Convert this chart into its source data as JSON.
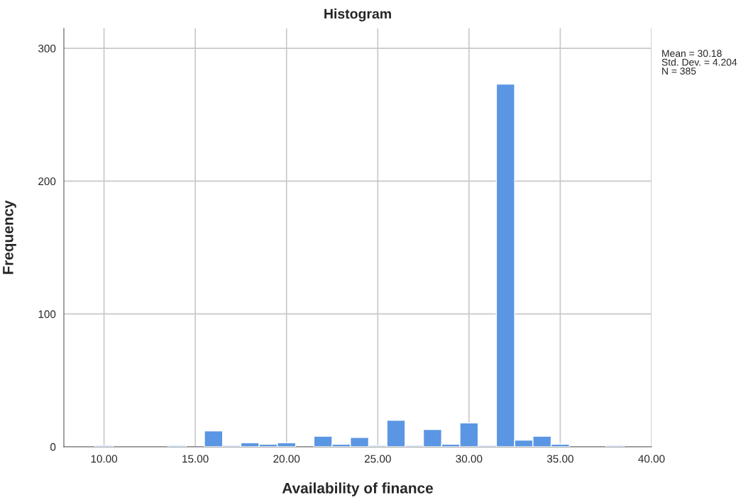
{
  "chart_data": {
    "type": "histogram",
    "title": "Histogram",
    "xlabel": "Availability of finance",
    "ylabel": "Frequency",
    "bins": [
      9.5,
      10.5,
      11.5,
      12.5,
      13.5,
      14.5,
      15.5,
      16.5,
      17.5,
      18.5,
      19.5,
      20.5,
      21.5,
      22.5,
      23.5,
      24.5,
      25.5,
      26.5,
      27.5,
      28.5,
      29.5,
      30.5,
      31.5,
      32.5,
      33.5,
      34.5,
      35.5,
      36.5,
      37.5,
      38.5
    ],
    "values": [
      1,
      0,
      0,
      0,
      1,
      0,
      12,
      1,
      3,
      2,
      3,
      0,
      8,
      2,
      7,
      1,
      20,
      1,
      13,
      2,
      18,
      1,
      273,
      5,
      8,
      2,
      0,
      0,
      1
    ],
    "color": "#5a96e3",
    "xlim": [
      7.8,
      40
    ],
    "xticks": [
      {
        "value": 10,
        "label": "10.00"
      },
      {
        "value": 15,
        "label": "15.00"
      },
      {
        "value": 20,
        "label": "20.00"
      },
      {
        "value": 25,
        "label": "25.00"
      },
      {
        "value": 30,
        "label": "30.00"
      },
      {
        "value": 35,
        "label": "35.00"
      },
      {
        "value": 40,
        "label": "40.00"
      }
    ],
    "ylim": [
      0,
      315
    ],
    "yticks": [
      0,
      100,
      200,
      300
    ],
    "grid": true,
    "annotations": [
      "Mean = 30.18\nStd. Dev. = 4.204\nN = 385"
    ]
  }
}
